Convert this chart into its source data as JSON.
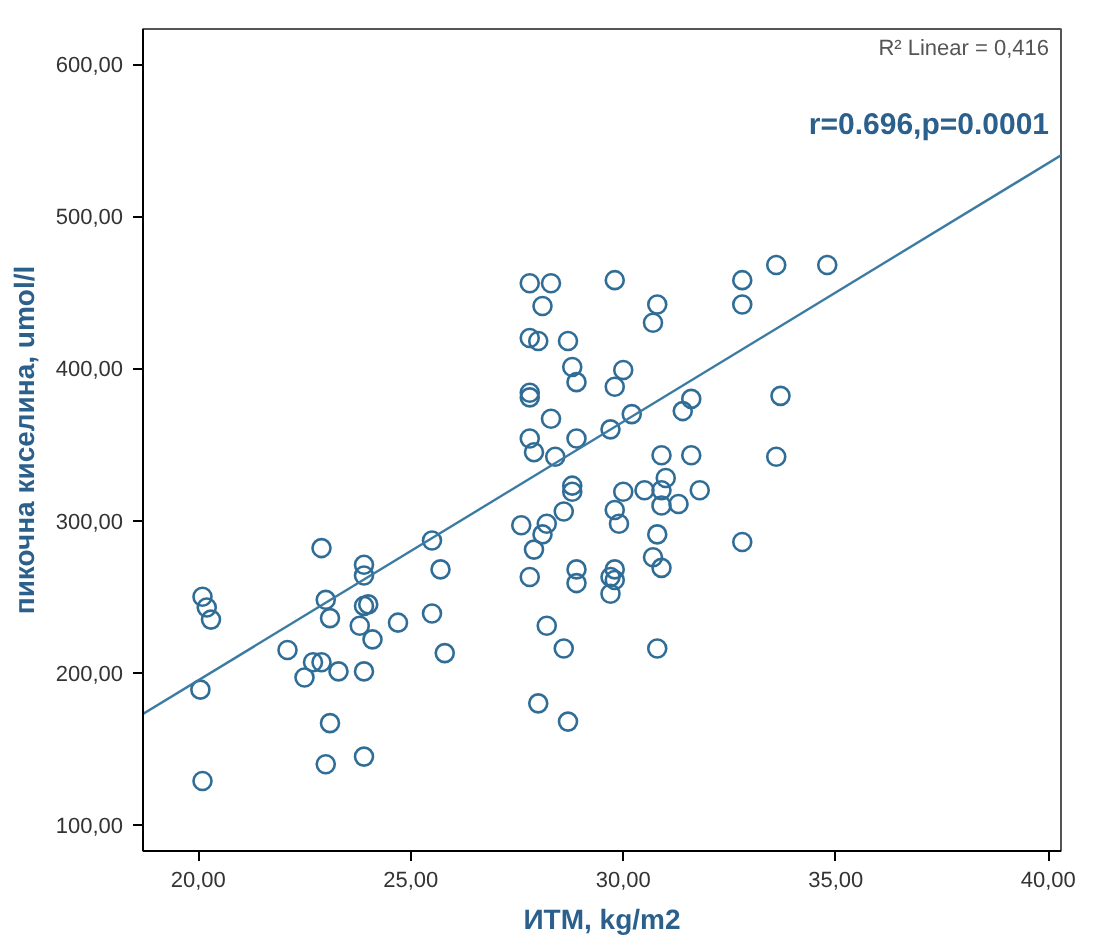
{
  "chart_data": {
    "type": "scatter",
    "xlabel": "ИТМ, kg/m2",
    "ylabel": "пикочна киселина, umol/l",
    "annotations": [
      "R² Linear = 0,416",
      "r=0.696,p=0.0001"
    ],
    "xlim": [
      18.7,
      40.3
    ],
    "ylim": [
      83,
      623
    ],
    "xticks": [
      {
        "value": 20,
        "label": "20,00"
      },
      {
        "value": 25,
        "label": "25,00"
      },
      {
        "value": 30,
        "label": "30,00"
      },
      {
        "value": 35,
        "label": "35,00"
      },
      {
        "value": 40,
        "label": "40,00"
      }
    ],
    "yticks": [
      {
        "value": 100,
        "label": "100,00"
      },
      {
        "value": 200,
        "label": "200,00"
      },
      {
        "value": 300,
        "label": "300,00"
      },
      {
        "value": 400,
        "label": "400,00"
      },
      {
        "value": 500,
        "label": "500,00"
      },
      {
        "value": 600,
        "label": "600,00"
      }
    ],
    "grid": false,
    "marker": "circle",
    "series": [
      {
        "color": "#2f6d97",
        "x": [
          20.1,
          20.2,
          20.3,
          20.05,
          20.1,
          22.9,
          23.9,
          23.9,
          25.5,
          25.7,
          23.0,
          23.1,
          23.9,
          24.0,
          23.8,
          24.1,
          24.7,
          25.5,
          25.8,
          22.1,
          22.7,
          22.9,
          22.5,
          23.3,
          23.9,
          23.1,
          23.0,
          23.9,
          27.6,
          28.2,
          28.1,
          27.9,
          27.8,
          28.6,
          28.9,
          28.9,
          29.7,
          29.7,
          28.2,
          28.6,
          28.0,
          28.7,
          29.8,
          29.9,
          29.8,
          29.8,
          30.8,
          30.7,
          30.9,
          30.9,
          31.3,
          32.8,
          30.8,
          27.8,
          28.3,
          28.1,
          29.8,
          30.8,
          30.7,
          32.8,
          32.8,
          33.6,
          34.8,
          27.8,
          28.0,
          28.7,
          28.8,
          28.9,
          30.0,
          29.8,
          27.8,
          27.8,
          28.3,
          30.2,
          29.7,
          31.4,
          31.6,
          33.7,
          27.8,
          27.9,
          28.4,
          28.9,
          30.9,
          31.6,
          33.6,
          28.8,
          28.8,
          30.0,
          30.5,
          30.9,
          31.0,
          31.8
        ],
        "values": [
          250,
          243,
          235,
          189,
          129,
          282,
          271,
          264,
          287,
          268,
          248,
          236,
          244,
          245,
          231,
          222,
          233,
          239,
          213,
          215,
          207,
          207,
          197,
          201,
          201,
          167,
          140,
          145,
          297,
          298,
          291,
          281,
          263,
          306,
          268,
          259,
          263,
          252,
          231,
          216,
          180,
          168,
          307,
          298,
          268,
          261,
          291,
          276,
          269,
          310,
          311,
          286,
          216,
          456,
          456,
          441,
          458,
          442,
          430,
          458,
          442,
          468,
          468,
          420,
          418,
          418,
          401,
          391,
          399,
          388,
          384,
          381,
          367,
          370,
          360,
          372,
          380,
          382,
          354,
          345,
          342,
          354,
          343,
          343,
          342,
          323,
          319,
          319,
          320,
          320,
          328,
          320
        ]
      },
      {
        "type": "line",
        "color": "#3b7ba3",
        "marker": "none",
        "line_style": "solid",
        "x": [
          18.7,
          40.3
        ],
        "values": [
          173,
          540
        ]
      }
    ]
  }
}
